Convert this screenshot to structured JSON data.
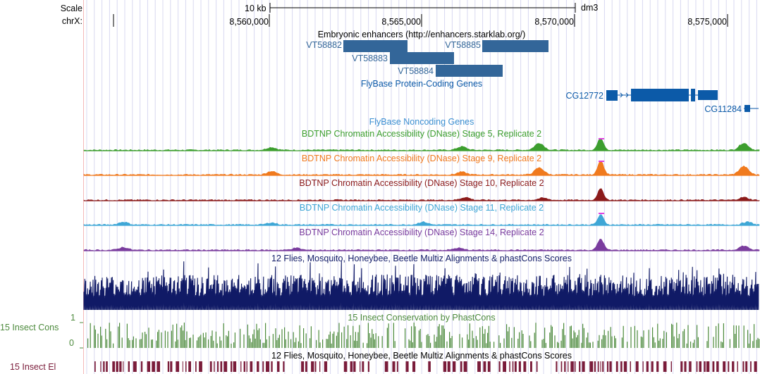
{
  "ruler": {
    "scale_label": "Scale",
    "chrom_label": "chrX:",
    "scale_bar_label": "10 kb",
    "assembly": "dm3",
    "positions": [
      "8,560,000",
      "8,565,000",
      "8,570,000",
      "8,575,000"
    ]
  },
  "tracks": {
    "enhancers": {
      "title": "Embryonic enhancers (http://enhancers.starklab.org/)",
      "items": [
        "VT58882",
        "VT58883",
        "VT58884",
        "VT58885"
      ],
      "color": "#336699"
    },
    "flybase_coding": {
      "title": "FlyBase Protein-Coding Genes",
      "genes": [
        "CG12772",
        "CG11284"
      ],
      "color": "#0c5aa8"
    },
    "flybase_noncoding": {
      "title": "FlyBase Noncoding Genes",
      "color": "#3b8fd1"
    },
    "dnase": [
      {
        "title": "BDTNP Chromatin Accessibility (DNase) Stage 5, Replicate 2",
        "color": "#3c9e2e"
      },
      {
        "title": "BDTNP Chromatin Accessibility (DNase) Stage 9, Replicate 2",
        "color": "#f07a1e"
      },
      {
        "title": "BDTNP Chromatin Accessibility (DNase) Stage 10, Replicate 2",
        "color": "#8b1a1a"
      },
      {
        "title": "BDTNP Chromatin Accessibility (DNase) Stage 11, Replicate 2",
        "color": "#3fa7d6"
      },
      {
        "title": "BDTNP Chromatin Accessibility (DNase) Stage 14, Replicate 2",
        "color": "#7a3c9e"
      }
    ],
    "multiz": {
      "title": "12 Flies, Mosquito, Honeybee, Beetle Multiz Alignments & phastCons Scores",
      "color": "#101a66"
    },
    "insect_cons": {
      "title": "15 Insect Conservation by PhastCons",
      "side_label": "15 Insect Cons",
      "ymax": "1",
      "ymin": "0",
      "color": "#4c8a3c"
    },
    "insect_el": {
      "title": "12 Flies, Mosquito, Honeybee, Beetle Multiz Alignments & phastCons Scores",
      "side_label": "15 Insect El",
      "color": "#7a1c3a"
    }
  }
}
